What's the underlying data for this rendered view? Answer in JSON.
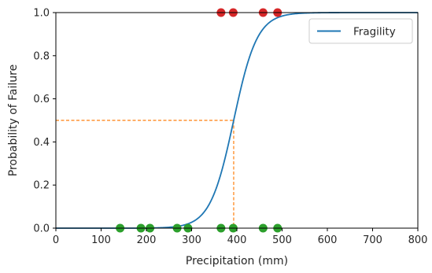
{
  "chart_data": {
    "type": "line",
    "title": "",
    "xlabel": "Precipitation (mm)",
    "ylabel": "Probability of Failure",
    "xlim": [
      0,
      800
    ],
    "ylim": [
      0,
      1.0
    ],
    "xticks": [
      0,
      100,
      200,
      300,
      400,
      500,
      600,
      700,
      800
    ],
    "yticks": [
      0.0,
      0.2,
      0.4,
      0.6,
      0.8,
      1.0
    ],
    "xtick_labels": [
      "0",
      "100",
      "200",
      "300",
      "400",
      "500",
      "600",
      "700",
      "800"
    ],
    "ytick_labels": [
      "0.0",
      "0.2",
      "0.4",
      "0.6",
      "0.8",
      "1.0"
    ],
    "grid": false,
    "legend": {
      "placement": "top-right",
      "entries": [
        "Fragility"
      ]
    },
    "series": [
      {
        "name": "Fragility",
        "color": "#1f77b4",
        "x": [
          0,
          250,
          280,
          300,
          320,
          340,
          360,
          380,
          393,
          400,
          420,
          440,
          460,
          480,
          500,
          530,
          560,
          800
        ],
        "y": [
          0.0,
          0.0,
          0.005,
          0.02,
          0.05,
          0.1,
          0.2,
          0.35,
          0.5,
          0.58,
          0.76,
          0.88,
          0.95,
          0.98,
          0.995,
          1.0,
          1.0,
          1.0
        ]
      }
    ],
    "failures": {
      "color": "#d62728",
      "x": [
        365,
        392,
        458,
        490
      ],
      "y": [
        1,
        1,
        1,
        1
      ]
    },
    "non_failures": {
      "color": "#2ca02c",
      "x": [
        142,
        188,
        208,
        268,
        292,
        365,
        392,
        458,
        490
      ],
      "y": [
        0,
        0,
        0,
        0,
        0,
        0,
        0,
        0,
        0
      ]
    },
    "reference_lines": {
      "color": "#ff7f0e",
      "style": "dashed",
      "x": 393,
      "y": 0.5
    }
  }
}
